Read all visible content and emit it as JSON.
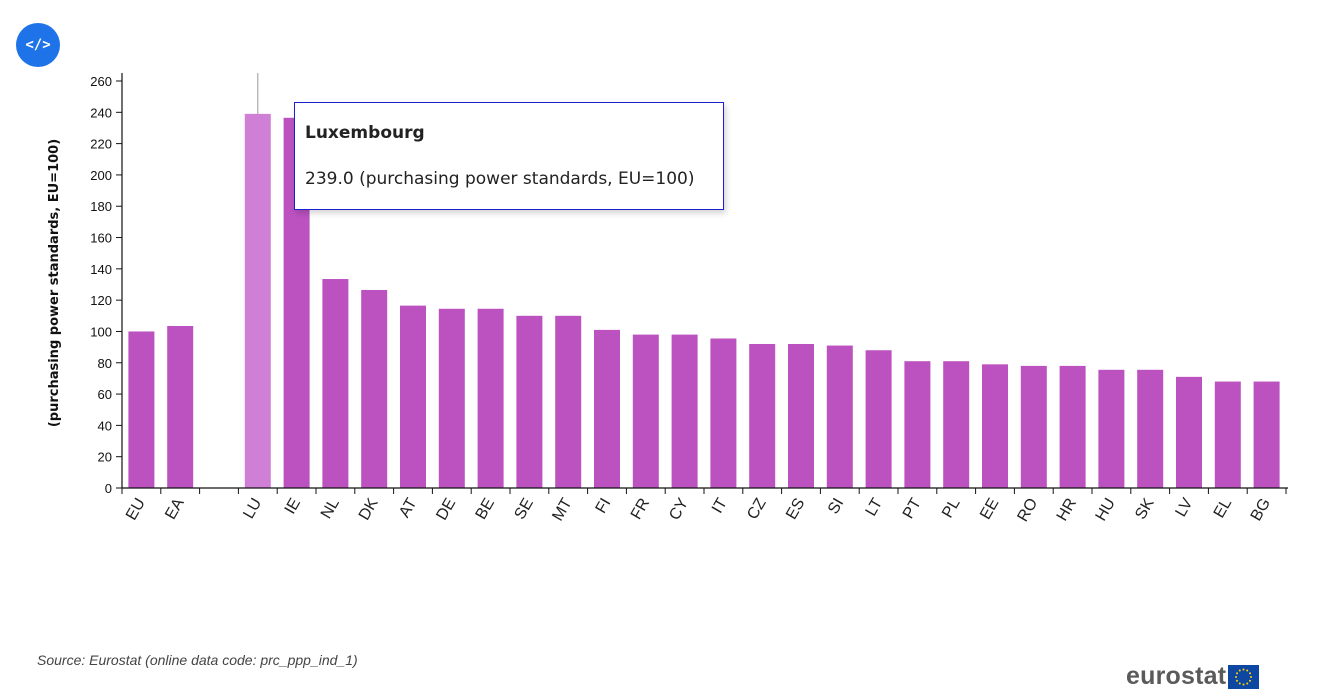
{
  "embed_button": {
    "label": "</>"
  },
  "colors": {
    "bar": "#bb52c0",
    "bar_highlight": "#d07fd6",
    "axis": "#111111",
    "tooltip_border": "#1d1fd6",
    "embed_button_bg": "#1e73e8",
    "flag_blue": "#0e47a1",
    "flag_star": "#ffd200"
  },
  "chart_data": {
    "type": "bar",
    "ylabel": "(purchasing power standards, EU=100)",
    "ylim": [
      0,
      260
    ],
    "yticks": [
      0,
      20,
      40,
      60,
      80,
      100,
      120,
      140,
      160,
      180,
      200,
      220,
      240,
      260
    ],
    "grid": false,
    "categories": [
      "EU",
      "EA",
      "",
      "LU",
      "IE",
      "NL",
      "DK",
      "AT",
      "DE",
      "BE",
      "SE",
      "MT",
      "FI",
      "FR",
      "CY",
      "IT",
      "CZ",
      "ES",
      "SI",
      "LT",
      "PT",
      "PL",
      "EE",
      "RO",
      "HR",
      "HU",
      "SK",
      "LV",
      "EL",
      "BG"
    ],
    "values": [
      100,
      103.5,
      null,
      239,
      236.5,
      133.5,
      126.5,
      116.5,
      114.5,
      114.5,
      110,
      110,
      101,
      98,
      98,
      95.5,
      92,
      92,
      91,
      88,
      81,
      81,
      79,
      78,
      78,
      75.5,
      75.5,
      71,
      68,
      68
    ],
    "highlighted_category": "LU"
  },
  "tooltip": {
    "title": "Luxembourg",
    "value_text": "239.0 (purchasing power standards, EU=100)"
  },
  "footer": {
    "source": "Source: Eurostat (online data code: prc_ppp_ind_1)",
    "logo_text": "eurostat"
  }
}
